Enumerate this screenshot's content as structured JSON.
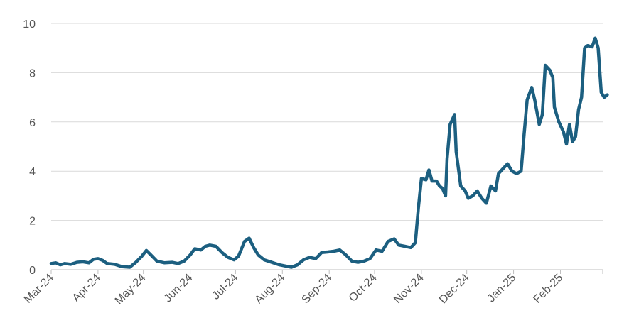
{
  "chart_data": {
    "type": "line",
    "title": "",
    "xlabel": "",
    "ylabel": "",
    "ylim": [
      0,
      10
    ],
    "yticks": [
      0,
      2,
      4,
      6,
      8,
      10
    ],
    "x_range": [
      "2024-03-01",
      "2025-03-01"
    ],
    "grid": "horizontal",
    "legend": "none",
    "x_tick_labels": [
      "Mar-24",
      "Apr-24",
      "May-24",
      "Jun-24",
      "Jul-24",
      "Aug-24",
      "Sep-24",
      "Oct-24",
      "Nov-24",
      "Dec-24",
      "Jan-25",
      "Feb-25"
    ],
    "x_tick_dates": [
      "2024-03-01",
      "2024-04-01",
      "2024-05-01",
      "2024-06-01",
      "2024-07-01",
      "2024-08-01",
      "2024-09-01",
      "2024-10-01",
      "2024-11-01",
      "2024-12-01",
      "2025-01-01",
      "2025-02-01"
    ],
    "series": [
      {
        "color": "#1c5f80",
        "points": [
          [
            "2024-03-01",
            0.25
          ],
          [
            "2024-03-04",
            0.28
          ],
          [
            "2024-03-07",
            0.2
          ],
          [
            "2024-03-10",
            0.25
          ],
          [
            "2024-03-14",
            0.22
          ],
          [
            "2024-03-18",
            0.3
          ],
          [
            "2024-03-22",
            0.32
          ],
          [
            "2024-03-26",
            0.28
          ],
          [
            "2024-03-29",
            0.42
          ],
          [
            "2024-04-01",
            0.45
          ],
          [
            "2024-04-04",
            0.38
          ],
          [
            "2024-04-07",
            0.25
          ],
          [
            "2024-04-12",
            0.22
          ],
          [
            "2024-04-17",
            0.12
          ],
          [
            "2024-04-22",
            0.1
          ],
          [
            "2024-04-26",
            0.3
          ],
          [
            "2024-04-30",
            0.55
          ],
          [
            "2024-05-03",
            0.78
          ],
          [
            "2024-05-06",
            0.6
          ],
          [
            "2024-05-10",
            0.35
          ],
          [
            "2024-05-15",
            0.28
          ],
          [
            "2024-05-20",
            0.3
          ],
          [
            "2024-05-24",
            0.25
          ],
          [
            "2024-05-28",
            0.35
          ],
          [
            "2024-06-01",
            0.6
          ],
          [
            "2024-06-04",
            0.85
          ],
          [
            "2024-06-08",
            0.8
          ],
          [
            "2024-06-11",
            0.95
          ],
          [
            "2024-06-14",
            1.0
          ],
          [
            "2024-06-18",
            0.95
          ],
          [
            "2024-06-22",
            0.7
          ],
          [
            "2024-06-26",
            0.5
          ],
          [
            "2024-06-30",
            0.4
          ],
          [
            "2024-07-03",
            0.55
          ],
          [
            "2024-07-07",
            1.15
          ],
          [
            "2024-07-10",
            1.28
          ],
          [
            "2024-07-13",
            0.9
          ],
          [
            "2024-07-16",
            0.6
          ],
          [
            "2024-07-20",
            0.4
          ],
          [
            "2024-07-25",
            0.3
          ],
          [
            "2024-07-30",
            0.2
          ],
          [
            "2024-08-03",
            0.15
          ],
          [
            "2024-08-07",
            0.1
          ],
          [
            "2024-08-11",
            0.2
          ],
          [
            "2024-08-15",
            0.4
          ],
          [
            "2024-08-19",
            0.5
          ],
          [
            "2024-08-23",
            0.45
          ],
          [
            "2024-08-27",
            0.7
          ],
          [
            "2024-08-31",
            0.72
          ],
          [
            "2024-09-04",
            0.75
          ],
          [
            "2024-09-08",
            0.8
          ],
          [
            "2024-09-12",
            0.6
          ],
          [
            "2024-09-16",
            0.35
          ],
          [
            "2024-09-20",
            0.3
          ],
          [
            "2024-09-24",
            0.35
          ],
          [
            "2024-09-28",
            0.45
          ],
          [
            "2024-10-02",
            0.8
          ],
          [
            "2024-10-06",
            0.75
          ],
          [
            "2024-10-10",
            1.15
          ],
          [
            "2024-10-14",
            1.25
          ],
          [
            "2024-10-17",
            1.0
          ],
          [
            "2024-10-21",
            0.95
          ],
          [
            "2024-10-25",
            0.9
          ],
          [
            "2024-10-28",
            1.1
          ],
          [
            "2024-10-30",
            2.5
          ],
          [
            "2024-11-01",
            3.7
          ],
          [
            "2024-11-04",
            3.65
          ],
          [
            "2024-11-06",
            4.05
          ],
          [
            "2024-11-08",
            3.6
          ],
          [
            "2024-11-11",
            3.6
          ],
          [
            "2024-11-13",
            3.4
          ],
          [
            "2024-11-15",
            3.3
          ],
          [
            "2024-11-17",
            3.0
          ],
          [
            "2024-11-18",
            4.5
          ],
          [
            "2024-11-20",
            5.9
          ],
          [
            "2024-11-23",
            6.3
          ],
          [
            "2024-11-24",
            4.8
          ],
          [
            "2024-11-27",
            3.4
          ],
          [
            "2024-11-30",
            3.2
          ],
          [
            "2024-12-02",
            2.9
          ],
          [
            "2024-12-05",
            3.0
          ],
          [
            "2024-12-08",
            3.2
          ],
          [
            "2024-12-11",
            2.9
          ],
          [
            "2024-12-14",
            2.7
          ],
          [
            "2024-12-17",
            3.4
          ],
          [
            "2024-12-20",
            3.2
          ],
          [
            "2024-12-22",
            3.9
          ],
          [
            "2024-12-25",
            4.1
          ],
          [
            "2024-12-28",
            4.3
          ],
          [
            "2024-12-31",
            4.0
          ],
          [
            "2025-01-03",
            3.9
          ],
          [
            "2025-01-06",
            4.0
          ],
          [
            "2025-01-08",
            5.5
          ],
          [
            "2025-01-10",
            6.9
          ],
          [
            "2025-01-13",
            7.4
          ],
          [
            "2025-01-15",
            6.9
          ],
          [
            "2025-01-18",
            5.9
          ],
          [
            "2025-01-20",
            6.3
          ],
          [
            "2025-01-22",
            8.3
          ],
          [
            "2025-01-25",
            8.1
          ],
          [
            "2025-01-27",
            7.8
          ],
          [
            "2025-01-28",
            6.6
          ],
          [
            "2025-01-31",
            6.0
          ],
          [
            "2025-02-03",
            5.6
          ],
          [
            "2025-02-05",
            5.1
          ],
          [
            "2025-02-07",
            5.9
          ],
          [
            "2025-02-09",
            5.2
          ],
          [
            "2025-02-11",
            5.4
          ],
          [
            "2025-02-13",
            6.5
          ],
          [
            "2025-02-15",
            7.0
          ],
          [
            "2025-02-17",
            9.0
          ],
          [
            "2025-02-19",
            9.1
          ],
          [
            "2025-02-22",
            9.05
          ],
          [
            "2025-02-24",
            9.4
          ],
          [
            "2025-02-26",
            9.0
          ],
          [
            "2025-02-28",
            7.2
          ],
          [
            "2025-03-02",
            7.0
          ],
          [
            "2025-03-04",
            7.1
          ]
        ]
      }
    ]
  }
}
